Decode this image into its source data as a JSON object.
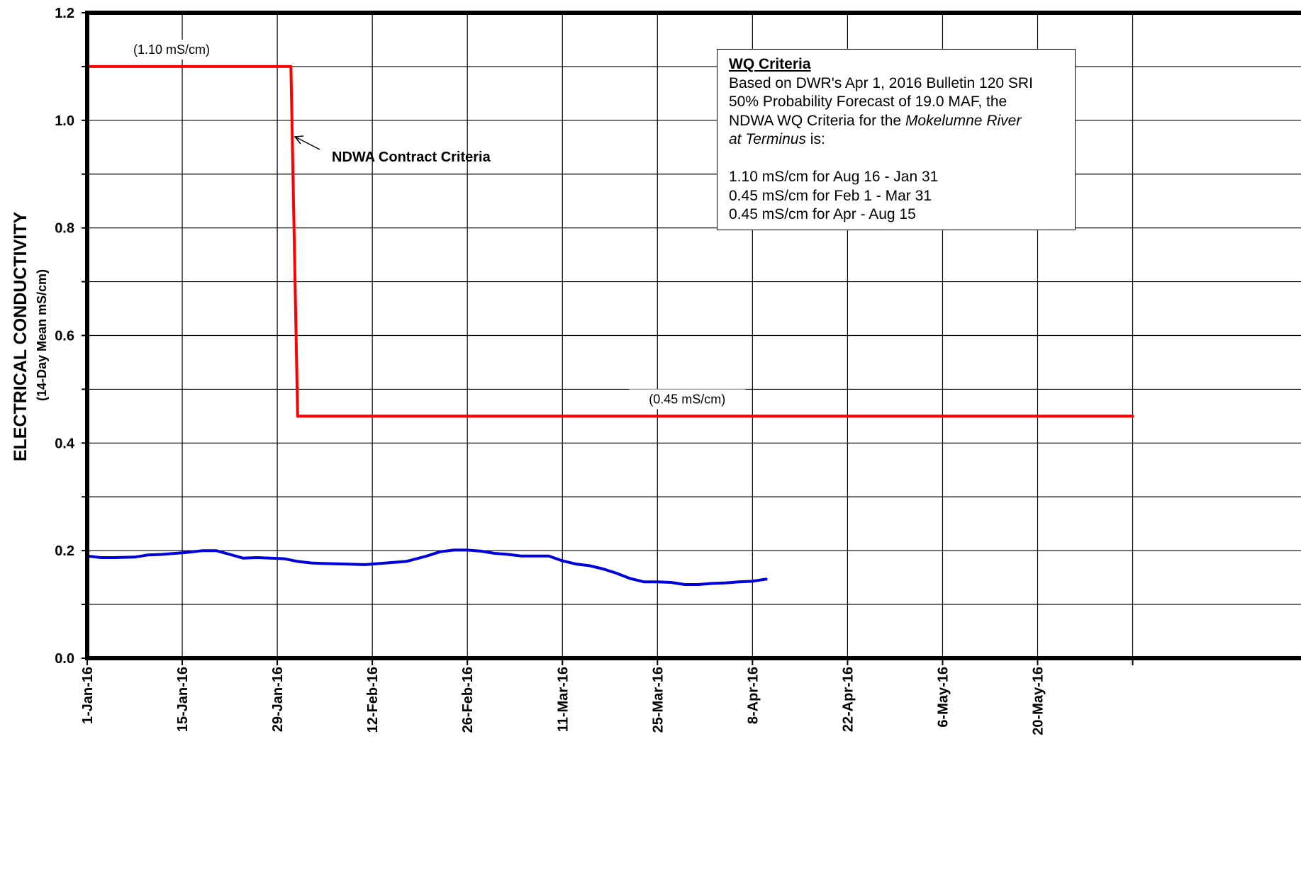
{
  "chart_data": {
    "type": "line",
    "title": "",
    "ylabel": "ELECTRICAL CONDUCTIVITY",
    "ylabel_sub": "(14-Day Mean mS/cm)",
    "xlabel": "",
    "ylim": [
      0.0,
      1.2
    ],
    "y_ticks": [
      0.0,
      0.1,
      0.2,
      0.3,
      0.4,
      0.5,
      0.6,
      0.7,
      0.8,
      0.9,
      1.0,
      1.1,
      1.2
    ],
    "y_tick_labels": [
      "0.0",
      "",
      "0.2",
      "",
      "0.4",
      "",
      "0.6",
      "",
      "0.8",
      "",
      "1.0",
      "",
      "1.2"
    ],
    "x_start": "2016-01-01",
    "x_end": "2016-06-03",
    "x_ticks": [
      "2016-01-01",
      "2016-01-15",
      "2016-01-29",
      "2016-02-12",
      "2016-02-26",
      "2016-03-11",
      "2016-03-25",
      "2016-04-08",
      "2016-04-22",
      "2016-05-06",
      "2016-05-20",
      "2016-06-03"
    ],
    "x_tick_labels": [
      "1-Jan-16",
      "15-Jan-16",
      "29-Jan-16",
      "12-Feb-16",
      "26-Feb-16",
      "11-Mar-16",
      "25-Mar-16",
      "8-Apr-16",
      "22-Apr-16",
      "6-May-16",
      "20-May-16",
      ""
    ],
    "grid": true,
    "series": [
      {
        "name": "NDWA Contract Criteria",
        "color": "#ff0000",
        "x": [
          "2016-01-01",
          "2016-01-31",
          "2016-02-01",
          "2016-06-03"
        ],
        "y": [
          1.1,
          1.1,
          0.45,
          0.45
        ]
      },
      {
        "name": "",
        "color": "#0000dd",
        "x": [
          "2016-01-01",
          "2016-01-03",
          "2016-01-05",
          "2016-01-08",
          "2016-01-10",
          "2016-01-12",
          "2016-01-14",
          "2016-01-16",
          "2016-01-18",
          "2016-01-20",
          "2016-01-22",
          "2016-01-24",
          "2016-01-26",
          "2016-01-28",
          "2016-01-30",
          "2016-02-01",
          "2016-02-03",
          "2016-02-05",
          "2016-02-08",
          "2016-02-11",
          "2016-02-14",
          "2016-02-17",
          "2016-02-20",
          "2016-02-22",
          "2016-02-24",
          "2016-02-26",
          "2016-02-28",
          "2016-03-01",
          "2016-03-03",
          "2016-03-05",
          "2016-03-07",
          "2016-03-09",
          "2016-03-11",
          "2016-03-13",
          "2016-03-15",
          "2016-03-17",
          "2016-03-19",
          "2016-03-21",
          "2016-03-23",
          "2016-03-25",
          "2016-03-27",
          "2016-03-29",
          "2016-03-31",
          "2016-04-02",
          "2016-04-04",
          "2016-04-06",
          "2016-04-08",
          "2016-04-10"
        ],
        "y": [
          0.19,
          0.187,
          0.187,
          0.188,
          0.192,
          0.193,
          0.195,
          0.197,
          0.2,
          0.2,
          0.193,
          0.186,
          0.187,
          0.186,
          0.185,
          0.18,
          0.177,
          0.176,
          0.175,
          0.174,
          0.177,
          0.18,
          0.19,
          0.198,
          0.201,
          0.201,
          0.199,
          0.195,
          0.193,
          0.19,
          0.19,
          0.19,
          0.181,
          0.175,
          0.172,
          0.166,
          0.158,
          0.148,
          0.142,
          0.142,
          0.141,
          0.137,
          0.137,
          0.139,
          0.14,
          0.142,
          0.143,
          0.147
        ]
      }
    ],
    "annotations": {
      "criteria_label": "NDWA Contract Criteria",
      "level_high_label": "(1.10 mS/cm)",
      "level_low_label": "(0.45 mS/cm)"
    }
  },
  "criteria_box": {
    "header": "WQ Criteria",
    "line1": "Based on DWR's Apr 1, 2016 Bulletin 120 SRI",
    "line2": "50% Probability Forecast of 19.0 MAF, the",
    "line3_a": "NDWA WQ Criteria for the ",
    "line3_b": "Mokelumne River",
    "line4_a": "at Terminus",
    "line4_b": " is:",
    "rule1": "1.10 mS/cm for Aug 16 - Jan 31",
    "rule2": "0.45 mS/cm for Feb 1 - Mar 31",
    "rule3": "0.45 mS/cm for Apr - Aug 15"
  }
}
